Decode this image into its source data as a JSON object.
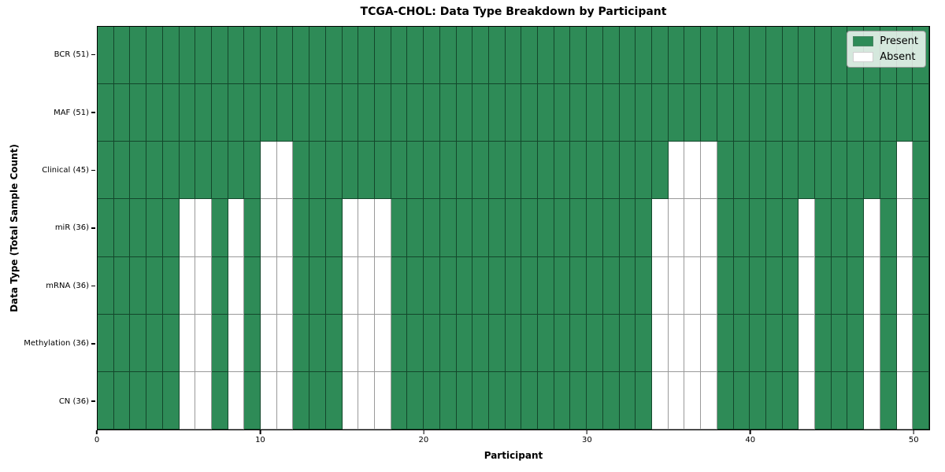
{
  "title": "TCGA-CHOL: Data Type Breakdown by Participant",
  "xlabel": "Participant",
  "ylabel": "Data Type (Total Sample Count)",
  "colors": {
    "present": "#2e8b57",
    "absent": "#ffffff",
    "spine": "#000000",
    "legend_bg": "rgba(255,255,255,0.8)"
  },
  "legend": {
    "position": "upper-right",
    "entries": [
      {
        "label": "Present",
        "color": "#2e8b57"
      },
      {
        "label": "Absent",
        "color": "#ffffff"
      }
    ]
  },
  "chart_data": {
    "type": "heatmap",
    "title": "TCGA-CHOL: Data Type Breakdown by Participant",
    "xlabel": "Participant",
    "ylabel": "Data Type (Total Sample Count)",
    "x_range": [
      0,
      51
    ],
    "x_ticks": [
      0,
      10,
      20,
      30,
      40,
      50
    ],
    "n_participants": 51,
    "grid": "cell-borders-on",
    "legend_entries": [
      "Present",
      "Absent"
    ],
    "rows": [
      {
        "label": "BCR (51)",
        "data_type": "BCR",
        "total_samples": 51,
        "absent_participants": []
      },
      {
        "label": "MAF (51)",
        "data_type": "MAF",
        "total_samples": 51,
        "absent_participants": []
      },
      {
        "label": "Clinical (45)",
        "data_type": "Clinical",
        "total_samples": 45,
        "absent_participants": [
          10,
          11,
          35,
          36,
          37,
          49
        ]
      },
      {
        "label": "miR (36)",
        "data_type": "miR",
        "total_samples": 36,
        "absent_participants": [
          5,
          6,
          8,
          10,
          11,
          15,
          16,
          17,
          34,
          35,
          36,
          37,
          43,
          47,
          49
        ]
      },
      {
        "label": "mRNA (36)",
        "data_type": "mRNA",
        "total_samples": 36,
        "absent_participants": [
          5,
          6,
          8,
          10,
          11,
          15,
          16,
          17,
          34,
          35,
          36,
          37,
          43,
          47,
          49
        ]
      },
      {
        "label": "Methylation (36)",
        "data_type": "Methylation",
        "total_samples": 36,
        "absent_participants": [
          5,
          6,
          8,
          10,
          11,
          15,
          16,
          17,
          34,
          35,
          36,
          37,
          43,
          47,
          49
        ]
      },
      {
        "label": "CN (36)",
        "data_type": "CN",
        "total_samples": 36,
        "absent_participants": [
          5,
          6,
          8,
          10,
          11,
          15,
          16,
          17,
          34,
          35,
          36,
          37,
          43,
          47,
          49
        ]
      }
    ]
  }
}
